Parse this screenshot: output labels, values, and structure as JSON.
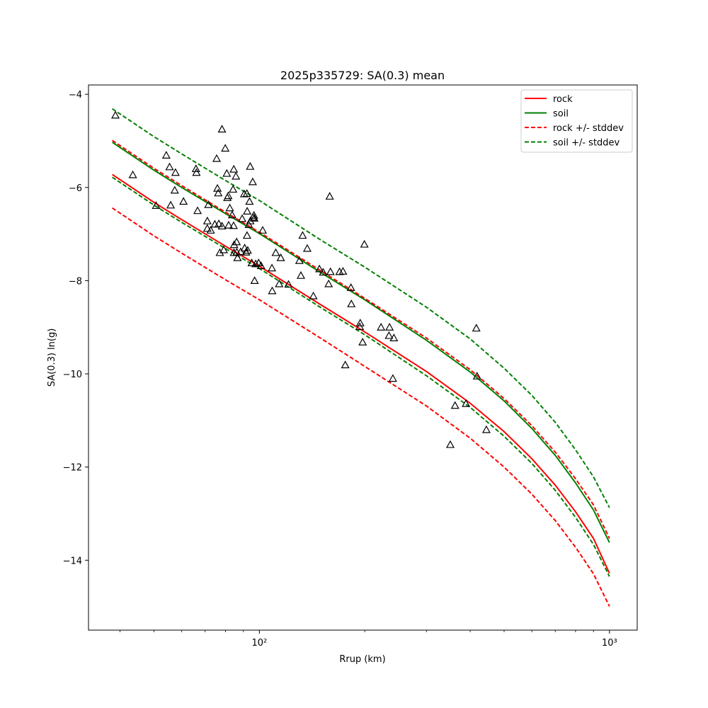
{
  "chart_data": {
    "type": "scatter",
    "title": "2025p335729: SA(0.3) mean",
    "xlabel": "Rrup (km)",
    "ylabel": "SA(0.3) ln(g)",
    "xscale": "log",
    "xlim": [
      32.5,
      1200
    ],
    "ylim": [
      -15.5,
      -3.8
    ],
    "x_ticks": [
      100,
      1000
    ],
    "x_tick_labels": [
      "10²",
      "10³"
    ],
    "y_ticks": [
      -4,
      -6,
      -8,
      -10,
      -12,
      -14
    ],
    "y_tick_labels": [
      "−4",
      "−6",
      "−8",
      "−10",
      "−12",
      "−14"
    ],
    "grid": false,
    "legend_position": "top-right",
    "curve_x": [
      38,
      50,
      60,
      80,
      100,
      150,
      200,
      300,
      400,
      500,
      600,
      700,
      800,
      900,
      1000
    ],
    "series": [
      {
        "name": "rock",
        "color": "#ff0000",
        "dash": false,
        "y": [
          -5.72,
          -6.32,
          -6.69,
          -7.26,
          -7.69,
          -8.52,
          -9.1,
          -9.95,
          -10.63,
          -11.24,
          -11.82,
          -12.39,
          -12.96,
          -13.53,
          -14.28
        ]
      },
      {
        "name": "soil",
        "color": "#008000",
        "dash": false,
        "y": [
          -5.03,
          -5.63,
          -6.0,
          -6.56,
          -6.99,
          -7.83,
          -8.41,
          -9.28,
          -9.96,
          -10.58,
          -11.17,
          -11.75,
          -12.34,
          -12.92,
          -13.62
        ]
      },
      {
        "name": "rock +/- stddev",
        "color": "#ff0000",
        "dash": true,
        "y": [
          -4.99,
          -5.59,
          -5.96,
          -6.53,
          -6.96,
          -7.79,
          -8.38,
          -9.23,
          -9.91,
          -10.53,
          -11.11,
          -11.68,
          -12.25,
          -12.81,
          -13.53
        ]
      },
      {
        "name": "rock +/- stddev",
        "color": "#ff0000",
        "dash": true,
        "show_in_legend": false,
        "y": [
          -6.44,
          -7.04,
          -7.41,
          -7.98,
          -8.41,
          -9.24,
          -9.84,
          -10.69,
          -11.38,
          -12.0,
          -12.58,
          -13.15,
          -13.72,
          -14.29,
          -14.99
        ]
      },
      {
        "name": "soil +/- stddev",
        "color": "#008000",
        "dash": true,
        "y": [
          -4.31,
          -4.91,
          -5.28,
          -5.85,
          -6.28,
          -7.13,
          -7.71,
          -8.57,
          -9.25,
          -9.88,
          -10.46,
          -11.04,
          -11.63,
          -12.21,
          -12.87
        ]
      },
      {
        "name": "soil +/- stddev",
        "color": "#008000",
        "dash": true,
        "show_in_legend": false,
        "y": [
          -5.78,
          -6.38,
          -6.75,
          -7.31,
          -7.74,
          -8.58,
          -9.16,
          -10.04,
          -10.72,
          -11.34,
          -11.92,
          -12.5,
          -13.08,
          -13.66,
          -14.35
        ]
      }
    ],
    "observations": [
      [
        38.8,
        -4.45
      ],
      [
        43.5,
        -5.73
      ],
      [
        50.7,
        -6.39
      ],
      [
        54.2,
        -5.31
      ],
      [
        55.4,
        -5.56
      ],
      [
        55.8,
        -6.38
      ],
      [
        57.6,
        -5.68
      ],
      [
        57.3,
        -6.06
      ],
      [
        60.7,
        -6.3
      ],
      [
        65.9,
        -5.6
      ],
      [
        66.1,
        -5.68
      ],
      [
        66.6,
        -6.5
      ],
      [
        71.0,
        -6.72
      ],
      [
        71.0,
        -6.88
      ],
      [
        71.5,
        -6.37
      ],
      [
        72.6,
        -6.92
      ],
      [
        74.6,
        -6.79
      ],
      [
        75.5,
        -5.38
      ],
      [
        75.9,
        -6.02
      ],
      [
        76.3,
        -6.12
      ],
      [
        76.6,
        -6.78
      ],
      [
        77.1,
        -7.4
      ],
      [
        78.2,
        -6.83
      ],
      [
        79.1,
        -7.34
      ],
      [
        79.9,
        -5.16
      ],
      [
        80.7,
        -5.7
      ],
      [
        81.0,
        -6.22
      ],
      [
        81.5,
        -6.18
      ],
      [
        81.7,
        -6.81
      ],
      [
        82.3,
        -6.44
      ],
      [
        83.6,
        -6.59
      ],
      [
        84.1,
        -6.04
      ],
      [
        84.5,
        -5.61
      ],
      [
        84.4,
        -6.82
      ],
      [
        84.7,
        -7.23
      ],
      [
        84.6,
        -7.4
      ],
      [
        85.7,
        -5.76
      ],
      [
        86.1,
        -7.17
      ],
      [
        86.2,
        -7.39
      ],
      [
        86.6,
        -7.51
      ],
      [
        88.4,
        -7.38
      ],
      [
        89.3,
        -6.67
      ],
      [
        90.5,
        -6.14
      ],
      [
        90.8,
        -7.3
      ],
      [
        91.6,
        -7.39
      ],
      [
        92.1,
        -6.13
      ],
      [
        92.3,
        -6.51
      ],
      [
        92.2,
        -7.03
      ],
      [
        92.6,
        -7.35
      ],
      [
        93.3,
        -6.8
      ],
      [
        93.7,
        -6.3
      ],
      [
        94.1,
        -5.55
      ],
      [
        94.2,
        -6.72
      ],
      [
        95.1,
        -7.62
      ],
      [
        95.7,
        -5.88
      ],
      [
        95.8,
        -6.64
      ],
      [
        96.5,
        -6.6
      ],
      [
        96.7,
        -6.66
      ],
      [
        96.9,
        -8.0
      ],
      [
        97.6,
        -7.64
      ],
      [
        99.5,
        -7.62
      ],
      [
        101.1,
        -7.68
      ],
      [
        102.2,
        -6.92
      ],
      [
        108.6,
        -7.73
      ],
      [
        108.8,
        -8.22
      ],
      [
        111.4,
        -7.4
      ],
      [
        113.9,
        -8.07
      ],
      [
        115.1,
        -7.51
      ],
      [
        121.1,
        -8.08
      ],
      [
        130.1,
        -7.57
      ],
      [
        131.4,
        -7.89
      ],
      [
        132.9,
        -7.03
      ],
      [
        137.0,
        -7.31
      ],
      [
        142.6,
        -8.33
      ],
      [
        148.4,
        -7.75
      ],
      [
        152.1,
        -7.82
      ],
      [
        157.7,
        -8.07
      ],
      [
        158.8,
        -6.19
      ],
      [
        159.6,
        -7.81
      ],
      [
        169.4,
        -7.81
      ],
      [
        173.3,
        -7.8
      ],
      [
        175.9,
        -9.81
      ],
      [
        182.6,
        -8.15
      ],
      [
        183.1,
        -8.5
      ],
      [
        193.6,
        -8.99
      ],
      [
        194.1,
        -8.91
      ],
      [
        197.2,
        -9.32
      ],
      [
        199.5,
        -7.22
      ],
      [
        222.6,
        -9.0
      ],
      [
        234.5,
        -9.18
      ],
      [
        235.4,
        -9.0
      ],
      [
        240.6,
        -10.1
      ],
      [
        242.2,
        -9.23
      ],
      [
        351.0,
        -11.52
      ],
      [
        362.2,
        -10.68
      ],
      [
        389.1,
        -10.64
      ],
      [
        416.5,
        -9.02
      ],
      [
        418.5,
        -10.05
      ],
      [
        445.0,
        -11.2
      ],
      [
        78.2,
        -4.75
      ]
    ]
  }
}
